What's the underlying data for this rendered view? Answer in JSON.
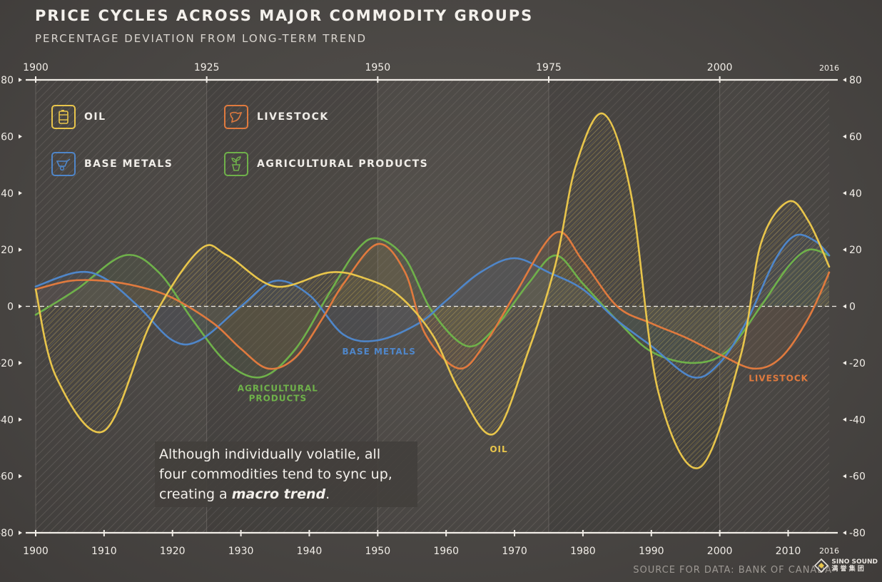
{
  "header": {
    "title": "PRICE CYCLES ACROSS MAJOR COMMODITY GROUPS",
    "subtitle": "PERCENTAGE DEVIATION FROM LONG-TERM TREND"
  },
  "legend": {
    "items": [
      {
        "label": "OIL",
        "color": "#e8c54b",
        "icon": "oil-barrel-icon"
      },
      {
        "label": "LIVESTOCK",
        "color": "#e07a3e",
        "icon": "livestock-icon"
      },
      {
        "label": "BASE METALS",
        "color": "#4f86c9",
        "icon": "wheelbarrow-icon"
      },
      {
        "label": "AGRICULTURAL PRODUCTS",
        "color": "#6fb14a",
        "icon": "plant-icon"
      }
    ]
  },
  "annotation": {
    "line1": "Although individually volatile, all",
    "line2": "four commodities tend to sync up,",
    "line3_prefix": "creating a ",
    "line3_emphasis": "macro trend",
    "line3_suffix": "."
  },
  "source": "SOURCE FOR DATA: BANK OF CANADA",
  "logo": {
    "line1": "SINO SOUND",
    "line2": "满 誉 集 团"
  },
  "chart_data": {
    "type": "line",
    "title": "PRICE CYCLES ACROSS MAJOR COMMODITY GROUPS",
    "ylabel": "Percentage deviation from long-term trend",
    "xlim": [
      1900,
      2016
    ],
    "ylim": [
      -80,
      80
    ],
    "x_ticks_bottom": [
      1900,
      1910,
      1920,
      1930,
      1940,
      1950,
      1960,
      1970,
      1980,
      1990,
      2000,
      2010
    ],
    "x_ticks_top": [
      1900,
      1925,
      1950,
      1975,
      2000
    ],
    "x_end_label": "2016",
    "y_ticks": [
      -80,
      -60,
      -40,
      -20,
      0,
      20,
      40,
      60,
      80
    ],
    "series": [
      {
        "name": "OIL",
        "color": "#e8c54b",
        "x": [
          1900,
          1903,
          1910,
          1917,
          1924,
          1928,
          1935,
          1943,
          1948,
          1953,
          1958,
          1962,
          1967,
          1972,
          1976,
          1979,
          1983,
          1987,
          1991,
          1997,
          2003,
          2006,
          2010,
          2013,
          2016
        ],
        "y": [
          6,
          -25,
          -44,
          -5,
          20,
          18,
          7,
          12,
          10,
          4,
          -10,
          -30,
          -45,
          -16,
          15,
          50,
          68,
          40,
          -30,
          -57,
          -18,
          22,
          37,
          30,
          14
        ]
      },
      {
        "name": "LIVESTOCK",
        "color": "#e07a3e",
        "x": [
          1900,
          1905,
          1910,
          1915,
          1920,
          1926,
          1930,
          1934,
          1938,
          1942,
          1945,
          1950,
          1954,
          1957,
          1962,
          1966,
          1970,
          1976,
          1980,
          1985,
          1990,
          1995,
          2000,
          2005,
          2009,
          2013,
          2016
        ],
        "y": [
          6,
          9,
          9,
          7,
          3,
          -6,
          -15,
          -22,
          -18,
          -4,
          8,
          22,
          12,
          -10,
          -22,
          -12,
          4,
          26,
          16,
          0,
          -6,
          -11,
          -17,
          -22,
          -18,
          -4,
          12
        ]
      },
      {
        "name": "BASE METALS",
        "color": "#4f86c9",
        "x": [
          1900,
          1906,
          1910,
          1915,
          1920,
          1924,
          1930,
          1935,
          1940,
          1945,
          1950,
          1956,
          1960,
          1965,
          1970,
          1975,
          1980,
          1985,
          1990,
          1996,
          2000,
          2004,
          2008,
          2011,
          2014,
          2016
        ],
        "y": [
          7,
          12,
          10,
          0,
          -12,
          -12,
          0,
          9,
          4,
          -10,
          -12,
          -6,
          2,
          12,
          17,
          12,
          6,
          -5,
          -14,
          -25,
          -20,
          -5,
          16,
          25,
          23,
          18
        ]
      },
      {
        "name": "AGRICULTURAL PRODUCTS",
        "color": "#6fb14a",
        "x": [
          1900,
          1906,
          1913,
          1918,
          1923,
          1928,
          1933,
          1938,
          1943,
          1947,
          1950,
          1954,
          1958,
          1963,
          1967,
          1972,
          1976,
          1980,
          1985,
          1990,
          1996,
          2001,
          2006,
          2010,
          2013,
          2016
        ],
        "y": [
          -3,
          6,
          18,
          12,
          -5,
          -20,
          -25,
          -15,
          5,
          20,
          24,
          17,
          -2,
          -14,
          -8,
          8,
          18,
          8,
          -5,
          -16,
          -20,
          -16,
          0,
          14,
          20,
          18
        ]
      }
    ],
    "data_labels": [
      {
        "text": "BASE METALS",
        "x": 1950.2,
        "y": -17,
        "series": "BASE METALS"
      },
      {
        "text": "AGRICULTURAL",
        "x": 1935.4,
        "y": -30,
        "series": "AGRICULTURAL PRODUCTS"
      },
      {
        "text": "PRODUCTS",
        "x": 1935.4,
        "y": -33.5,
        "series": "AGRICULTURAL PRODUCTS"
      },
      {
        "text": "OIL",
        "x": 1967.7,
        "y": -51.5,
        "series": "OIL"
      },
      {
        "text": "LIVESTOCK",
        "x": 2008.6,
        "y": -26.5,
        "series": "LIVESTOCK"
      }
    ]
  }
}
